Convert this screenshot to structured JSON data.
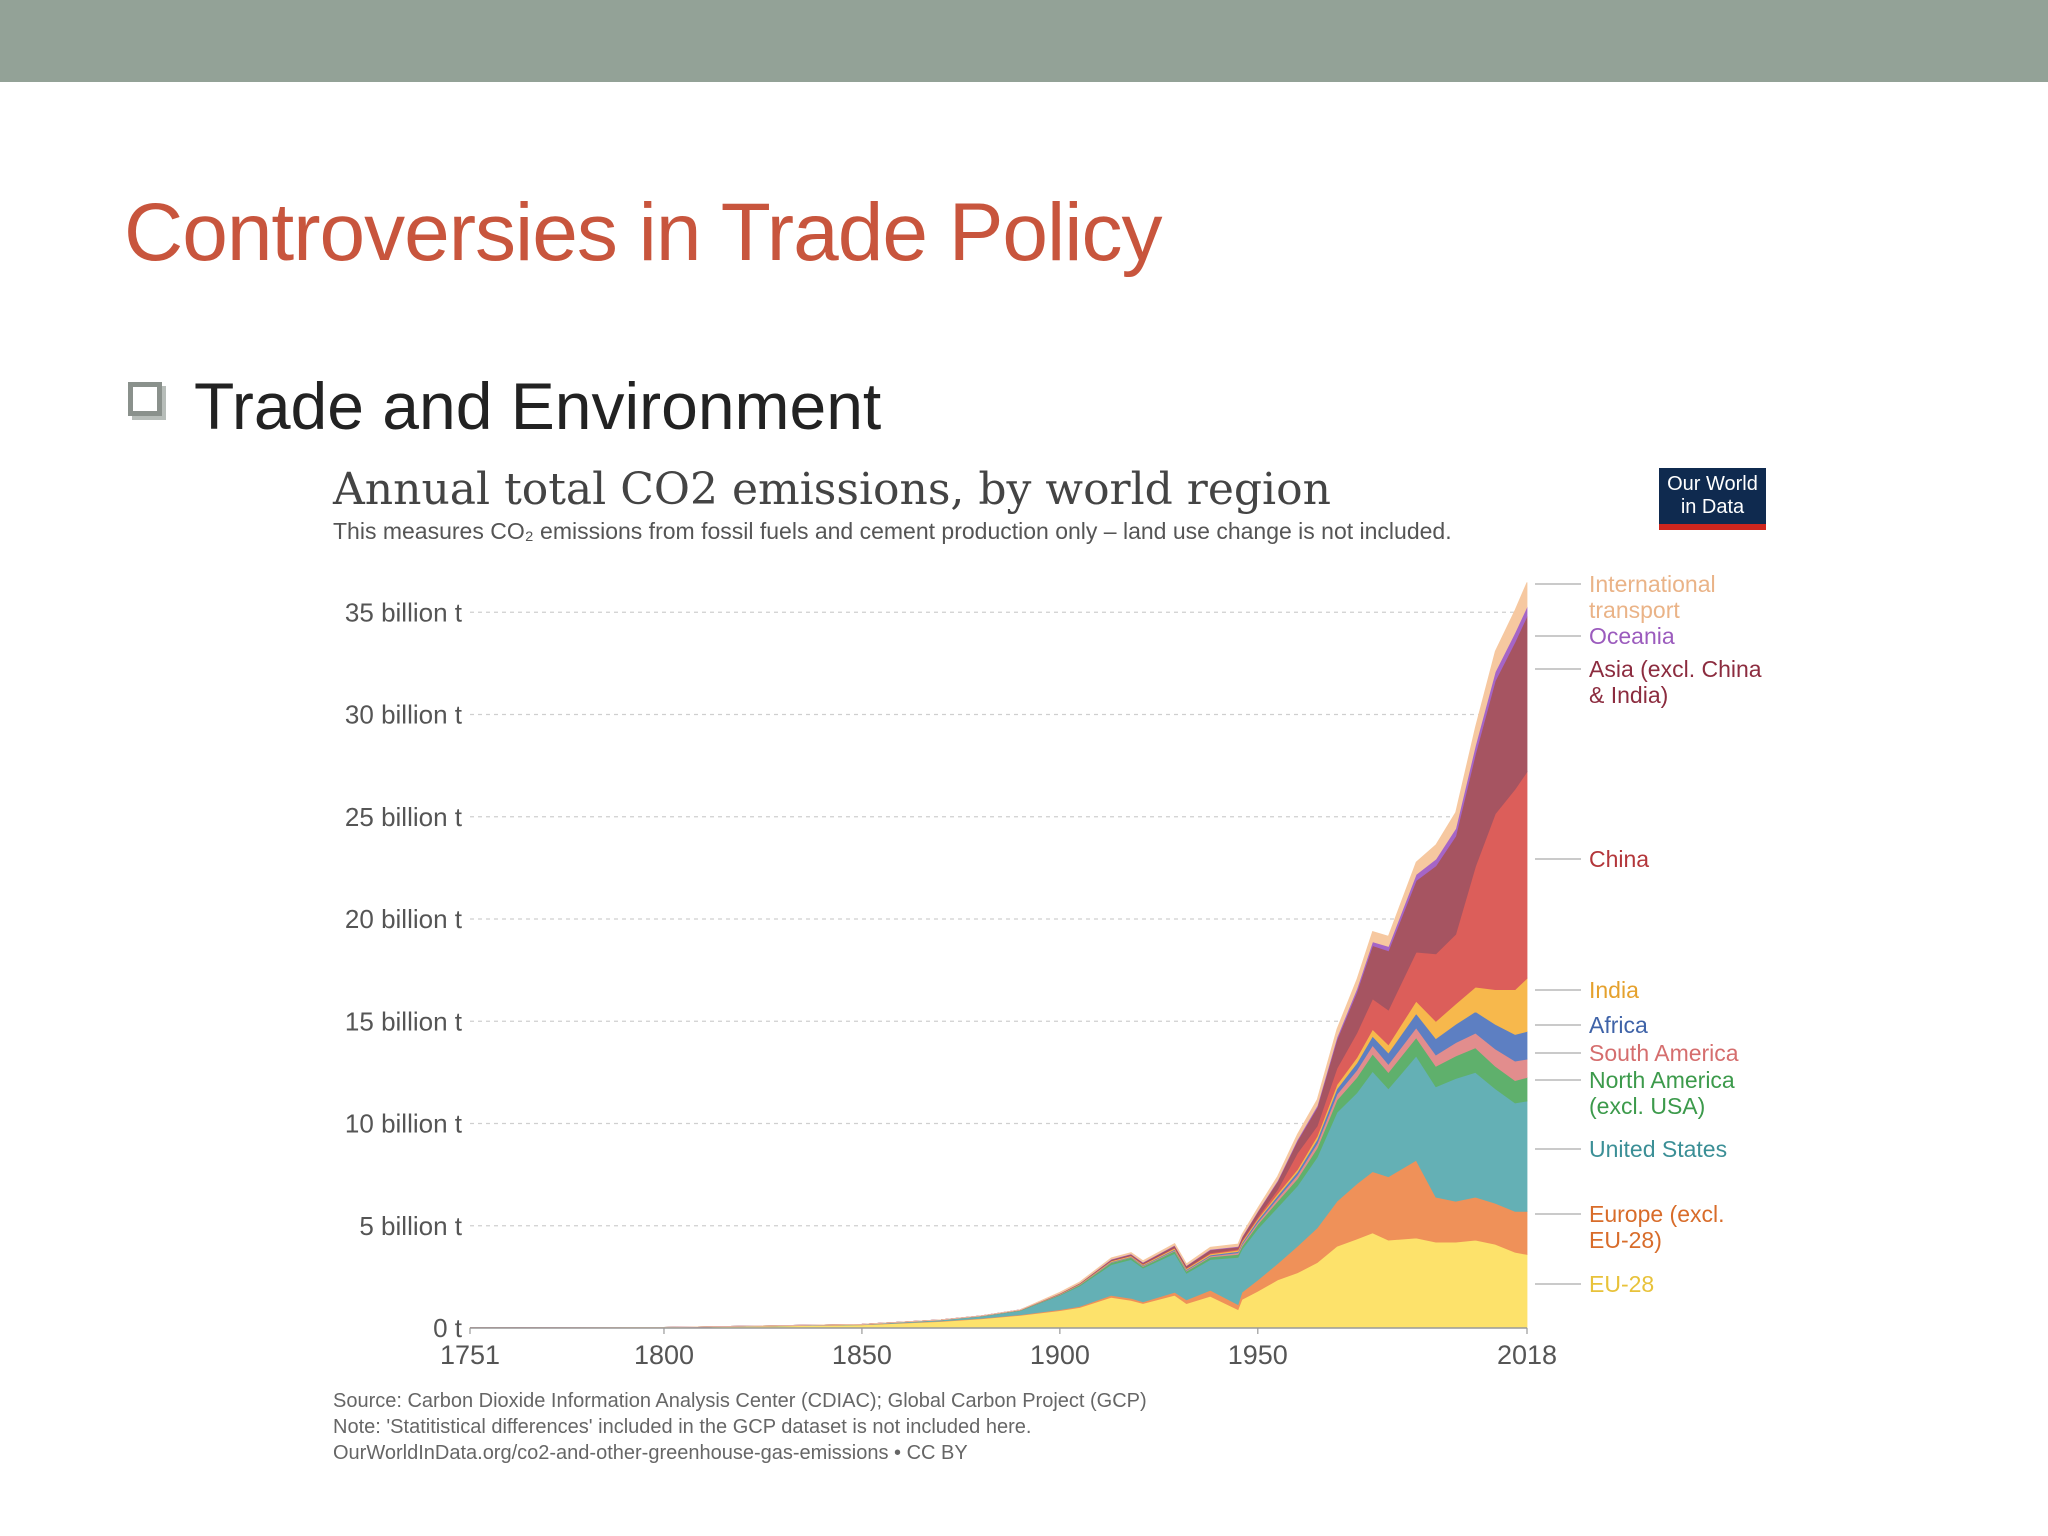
{
  "slide": {
    "title": "Controversies in Trade Policy",
    "bullet": "Trade and Environment"
  },
  "logo": {
    "line1": "Our World",
    "line2": "in Data"
  },
  "notes": {
    "source": "Source: Carbon Dioxide Information Analysis Center (CDIAC); Global Carbon Project (GCP)",
    "note": "Note: 'Statitistical differences' included in the GCP dataset is not included here.",
    "url": "OurWorldInData.org/co2-and-other-greenhouse-gas-emissions • CC BY"
  },
  "chart_data": {
    "type": "area",
    "stacked": true,
    "title": "Annual total CO2 emissions, by world region",
    "subtitle": "This measures CO₂ emissions from fossil fuels and cement production only – land use change is not included.",
    "y_unit": "billion t",
    "ylim": [
      0,
      37
    ],
    "y_ticks": [
      0,
      5,
      10,
      15,
      20,
      25,
      30,
      35
    ],
    "y_tick_labels": [
      "0 t",
      "5 billion t",
      "10 billion t",
      "15 billion t",
      "20 billion t",
      "25 billion t",
      "30 billion t",
      "35 billion t"
    ],
    "x_ticks": [
      1751,
      1800,
      1850,
      1900,
      1950,
      2018
    ],
    "xlim": [
      1751,
      2018
    ],
    "grid": true,
    "legend_position": "right (labels at series ends)",
    "x": [
      1751,
      1800,
      1850,
      1870,
      1880,
      1890,
      1900,
      1905,
      1913,
      1918,
      1921,
      1929,
      1932,
      1938,
      1945,
      1946,
      1950,
      1955,
      1960,
      1965,
      1970,
      1975,
      1979,
      1983,
      1990,
      1995,
      2000,
      2005,
      2010,
      2015,
      2018
    ],
    "series": [
      {
        "name": "EU-28",
        "color": "#fde26b",
        "values": [
          0.01,
          0.03,
          0.15,
          0.32,
          0.45,
          0.62,
          0.85,
          1.0,
          1.5,
          1.35,
          1.2,
          1.6,
          1.2,
          1.55,
          0.9,
          1.4,
          1.8,
          2.35,
          2.7,
          3.2,
          4.0,
          4.35,
          4.65,
          4.3,
          4.4,
          4.2,
          4.2,
          4.3,
          4.1,
          3.7,
          3.6
        ]
      },
      {
        "name": "Europe (excl. EU-28)",
        "color": "#ef9159",
        "values": [
          0.0,
          0.0,
          0.01,
          0.02,
          0.02,
          0.03,
          0.05,
          0.06,
          0.1,
          0.1,
          0.08,
          0.15,
          0.18,
          0.3,
          0.25,
          0.35,
          0.55,
          0.8,
          1.3,
          1.7,
          2.2,
          2.7,
          3.0,
          3.1,
          3.8,
          2.2,
          2.0,
          2.1,
          2.0,
          2.0,
          2.1
        ]
      },
      {
        "name": "United States",
        "color": "#64b0b5",
        "values": [
          0.0,
          0.0,
          0.02,
          0.05,
          0.1,
          0.2,
          0.7,
          1.0,
          1.5,
          1.9,
          1.65,
          1.9,
          1.3,
          1.5,
          2.3,
          2.1,
          2.5,
          2.75,
          2.95,
          3.45,
          4.35,
          4.45,
          4.9,
          4.3,
          5.1,
          5.4,
          6.0,
          6.1,
          5.6,
          5.3,
          5.4
        ]
      },
      {
        "name": "North America (excl. USA)",
        "color": "#5fb06c",
        "values": [
          0.0,
          0.0,
          0.0,
          0.01,
          0.01,
          0.02,
          0.03,
          0.05,
          0.1,
          0.1,
          0.08,
          0.12,
          0.1,
          0.12,
          0.15,
          0.15,
          0.22,
          0.3,
          0.35,
          0.45,
          0.6,
          0.75,
          0.85,
          0.8,
          0.9,
          1.0,
          1.1,
          1.2,
          1.1,
          1.1,
          1.15
        ]
      },
      {
        "name": "South America",
        "color": "#e28d8d",
        "values": [
          0.0,
          0.0,
          0.0,
          0.0,
          0.0,
          0.0,
          0.01,
          0.01,
          0.02,
          0.02,
          0.03,
          0.04,
          0.04,
          0.05,
          0.08,
          0.09,
          0.1,
          0.14,
          0.18,
          0.22,
          0.28,
          0.35,
          0.42,
          0.4,
          0.48,
          0.55,
          0.65,
          0.72,
          0.85,
          0.95,
          0.9
        ]
      },
      {
        "name": "Africa",
        "color": "#5d7fc2",
        "values": [
          0.0,
          0.0,
          0.0,
          0.0,
          0.0,
          0.0,
          0.01,
          0.01,
          0.02,
          0.02,
          0.03,
          0.04,
          0.04,
          0.05,
          0.06,
          0.07,
          0.1,
          0.13,
          0.15,
          0.2,
          0.27,
          0.35,
          0.45,
          0.55,
          0.7,
          0.8,
          0.9,
          1.05,
          1.2,
          1.3,
          1.35
        ]
      },
      {
        "name": "India",
        "color": "#f7b84c",
        "values": [
          0.0,
          0.0,
          0.0,
          0.0,
          0.01,
          0.01,
          0.02,
          0.03,
          0.04,
          0.04,
          0.04,
          0.05,
          0.05,
          0.06,
          0.07,
          0.07,
          0.08,
          0.1,
          0.12,
          0.16,
          0.2,
          0.27,
          0.33,
          0.4,
          0.6,
          0.85,
          1.0,
          1.2,
          1.7,
          2.2,
          2.6
        ]
      },
      {
        "name": "China",
        "color": "#dc5e5a",
        "values": [
          0.0,
          0.0,
          0.0,
          0.0,
          0.0,
          0.0,
          0.0,
          0.0,
          0.01,
          0.01,
          0.02,
          0.03,
          0.03,
          0.04,
          0.05,
          0.05,
          0.08,
          0.2,
          0.8,
          0.5,
          0.8,
          1.2,
          1.5,
          1.7,
          2.4,
          3.3,
          3.4,
          5.9,
          8.6,
          9.8,
          10.1
        ]
      },
      {
        "name": "Asia (excl. China & India)",
        "color": "#a65461",
        "values": [
          0.0,
          0.0,
          0.0,
          0.0,
          0.0,
          0.01,
          0.02,
          0.03,
          0.06,
          0.07,
          0.07,
          0.1,
          0.1,
          0.15,
          0.1,
          0.15,
          0.25,
          0.4,
          0.6,
          0.9,
          1.4,
          2.0,
          2.6,
          2.9,
          3.5,
          4.3,
          4.8,
          5.5,
          6.5,
          7.2,
          7.6
        ]
      },
      {
        "name": "Oceania",
        "color": "#a565c7",
        "values": [
          0.0,
          0.0,
          0.0,
          0.0,
          0.0,
          0.0,
          0.01,
          0.01,
          0.02,
          0.02,
          0.02,
          0.02,
          0.02,
          0.03,
          0.03,
          0.03,
          0.04,
          0.05,
          0.07,
          0.09,
          0.12,
          0.16,
          0.19,
          0.21,
          0.3,
          0.33,
          0.37,
          0.42,
          0.44,
          0.46,
          0.46
        ]
      },
      {
        "name": "International transport",
        "color": "#f6c8a0",
        "values": [
          0.0,
          0.0,
          0.0,
          0.0,
          0.0,
          0.0,
          0.05,
          0.05,
          0.06,
          0.06,
          0.07,
          0.08,
          0.08,
          0.1,
          0.12,
          0.12,
          0.15,
          0.2,
          0.25,
          0.3,
          0.4,
          0.45,
          0.5,
          0.5,
          0.6,
          0.7,
          0.8,
          0.9,
          1.0,
          1.1,
          1.2
        ]
      }
    ],
    "legend": [
      {
        "lines": [
          "International",
          "transport"
        ],
        "color": "#eab387"
      },
      {
        "lines": [
          "Oceania"
        ],
        "color": "#9b5bbd"
      },
      {
        "lines": [
          "Asia (excl. China",
          "& India)"
        ],
        "color": "#8c2c3f"
      },
      {
        "lines": [
          "China"
        ],
        "color": "#b3363a"
      },
      {
        "lines": [
          "India"
        ],
        "color": "#e5a12d"
      },
      {
        "lines": [
          "Africa"
        ],
        "color": "#3f63a8"
      },
      {
        "lines": [
          "South America"
        ],
        "color": "#d56e6e"
      },
      {
        "lines": [
          "North America",
          "(excl. USA)"
        ],
        "color": "#3c9a4b"
      },
      {
        "lines": [
          "United States"
        ],
        "color": "#3b8f96"
      },
      {
        "lines": [
          "Europe (excl.",
          "EU-28)"
        ],
        "color": "#d86c2a"
      },
      {
        "lines": [
          "EU-28"
        ],
        "color": "#e8c23a"
      }
    ]
  }
}
